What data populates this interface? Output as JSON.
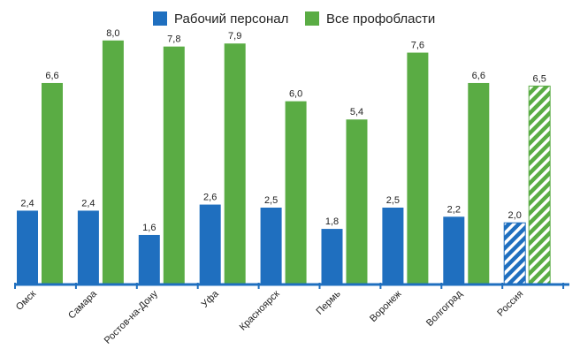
{
  "chart_data": {
    "type": "bar",
    "categories": [
      "Омск",
      "Самара",
      "Ростов-на-Дону",
      "Уфа",
      "Красноярск",
      "Пермь",
      "Воронеж",
      "Волгоград",
      "Россия"
    ],
    "series": [
      {
        "name": "Рабочий персонал",
        "color": "#1f6fbf",
        "values": [
          2.4,
          2.4,
          1.6,
          2.6,
          2.5,
          1.8,
          2.5,
          2.2,
          2.0
        ],
        "labels": [
          "2,4",
          "2,4",
          "1,6",
          "2,6",
          "2,5",
          "1,8",
          "2,5",
          "2,2",
          "2,0"
        ]
      },
      {
        "name": "Все профобласти",
        "color": "#5aac44",
        "values": [
          6.6,
          8.0,
          7.8,
          7.9,
          6.0,
          5.4,
          7.6,
          6.6,
          6.5
        ],
        "labels": [
          "6,6",
          "8,0",
          "7,8",
          "7,9",
          "6,0",
          "5,4",
          "7,6",
          "6,6",
          "6,5"
        ]
      }
    ],
    "hatched_categories": [
      "Россия"
    ],
    "ylim": [
      0,
      8.4
    ],
    "title": "",
    "xlabel": "",
    "ylabel": "",
    "legend_position": "top-center",
    "grid": false
  }
}
